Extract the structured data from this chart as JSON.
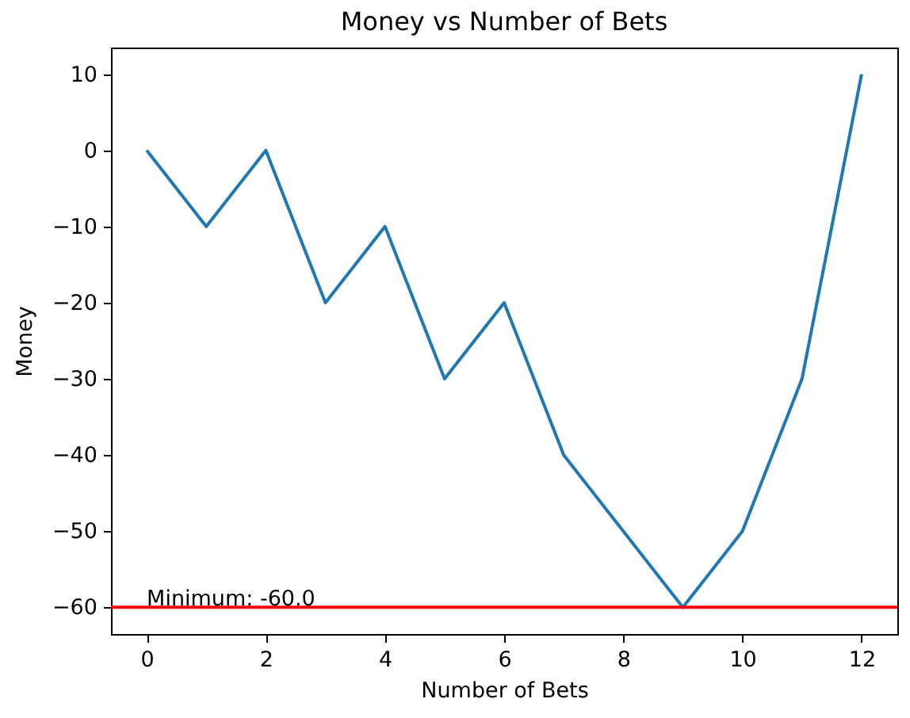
{
  "chart_data": {
    "type": "line",
    "title": "Money vs Number of Bets",
    "xlabel": "Number of Bets",
    "ylabel": "Money",
    "x": [
      0,
      1,
      2,
      3,
      4,
      5,
      6,
      7,
      8,
      9,
      10,
      11,
      12
    ],
    "values": [
      0,
      -10,
      0,
      -20,
      -10,
      -30,
      -20,
      -40,
      -50,
      -60,
      -50,
      -30,
      10
    ],
    "color": "#1f77b4",
    "xlim": [
      -0.6,
      12.6
    ],
    "xticks": [
      0,
      2,
      4,
      6,
      8,
      10,
      12
    ],
    "ylim": [
      -63.5,
      13.5
    ],
    "yticks": [
      {
        "value": -60,
        "label": "−60"
      },
      {
        "value": -50,
        "label": "−50"
      },
      {
        "value": -40,
        "label": "−40"
      },
      {
        "value": -30,
        "label": "−30"
      },
      {
        "value": -20,
        "label": "−20"
      },
      {
        "value": -10,
        "label": "−10"
      },
      0,
      10
    ],
    "ref_lines": [
      {
        "axis": "y",
        "value": -60,
        "label": "Minimum: -60.0",
        "color": "#ff0000"
      }
    ],
    "grid": false
  }
}
